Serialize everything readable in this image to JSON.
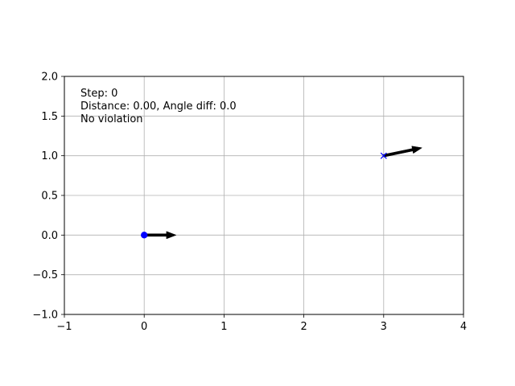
{
  "chart_data": {
    "type": "scatter",
    "title": "",
    "xlabel": "",
    "ylabel": "",
    "xlim": [
      -1,
      4
    ],
    "ylim": [
      -1,
      2
    ],
    "xticks": [
      -1,
      0,
      1,
      2,
      3,
      4
    ],
    "yticks": [
      -1.0,
      -0.5,
      0.0,
      0.5,
      1.0,
      1.5,
      2.0
    ],
    "xtick_labels": [
      "−1",
      "0",
      "1",
      "2",
      "3",
      "4"
    ],
    "ytick_labels": [
      "−1.0",
      "−0.5",
      "0.0",
      "0.5",
      "1.0",
      "1.5",
      "2.0"
    ],
    "grid": true,
    "series": [
      {
        "marker": "circle",
        "color": "#0000ff",
        "x": 0.0,
        "y": 0.0,
        "heading": {
          "dx": 0.4,
          "dy": 0.0
        }
      },
      {
        "marker": "x",
        "color": "#0000ff",
        "x": 3.0,
        "y": 1.0,
        "heading": {
          "dx": 0.48,
          "dy": 0.1
        }
      }
    ],
    "annotations": [
      "Step: 0",
      "Distance: 0.00, Angle diff: 0.0",
      "No violation"
    ]
  }
}
